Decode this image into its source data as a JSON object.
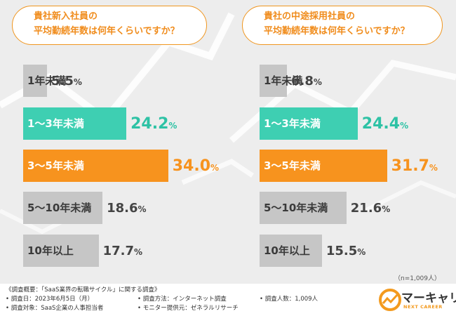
{
  "colors": {
    "background": "#ededed",
    "accent_orange": "#f7931e",
    "accent_teal": "#3ecfb2",
    "bar_gray": "#c6c6c6"
  },
  "chart_data": [
    {
      "type": "bar",
      "orientation": "horizontal",
      "title_line1": "貴社新入社員の",
      "title_line2": "平均勤続年数は何年くらいですか？",
      "categories": [
        "1年未満",
        "1〜3年未満",
        "3〜5年未満",
        "5〜10年未満",
        "10年以上"
      ],
      "values": [
        5.5,
        24.2,
        34.0,
        18.6,
        17.7
      ],
      "value_labels": [
        "5.5",
        "24.2",
        "34.0",
        "18.6",
        "17.7"
      ],
      "unit": "%",
      "styles": [
        "gray",
        "teal",
        "orange",
        "gray",
        "gray"
      ]
    },
    {
      "type": "bar",
      "orientation": "horizontal",
      "title_line1": "貴社の中途採用社員の",
      "title_line2": "平均勤続年数は何年くらいですか？",
      "categories": [
        "1年未満",
        "1〜3年未満",
        "3〜5年未満",
        "5〜10年未満",
        "10年以上"
      ],
      "values": [
        6.8,
        24.4,
        31.7,
        21.6,
        15.5
      ],
      "value_labels": [
        "6.8",
        "24.4",
        "31.7",
        "21.6",
        "15.5"
      ],
      "unit": "%",
      "styles": [
        "gray",
        "teal",
        "orange",
        "gray",
        "gray"
      ]
    }
  ],
  "sample_note": "（n=1,009人）",
  "footer": {
    "overview": "《調査概要：「SaaS業界の転職サイクル」に関する調査》",
    "date": "• 調査日：2023年6月5日（月）",
    "method": "• 調査方法：インターネット調査",
    "respondents": "• 調査人数：1,009人",
    "target": "• 調査対象：SaaS企業の人事担当者",
    "provider": "• モニター提供元：ゼネラルリサーチ"
  },
  "logo": {
    "name": "マーキャリ",
    "sub": "NEXT CAREER"
  }
}
